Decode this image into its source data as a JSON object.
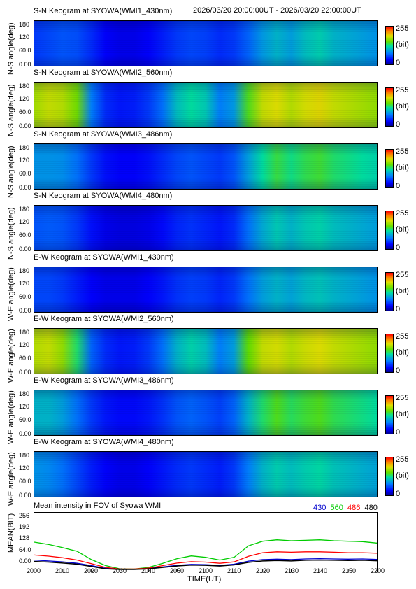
{
  "header": {
    "time_range": "2026/03/20 20:00:00UT - 2026/03/20 22:00:00UT"
  },
  "colorbar": {
    "max": "255",
    "unit": "(bit)",
    "min": "0"
  },
  "colors": {
    "430": "#0000cc",
    "560": "#00cc00",
    "486": "#ff0000",
    "480": "#000000"
  },
  "chart_data": [
    {
      "type": "heatmap",
      "title": "S-N Keogram at SYOWA(WMI1_430nm)",
      "ylabel": "N-S angle(deg)",
      "yticks": [
        "180",
        "120",
        "60.0",
        "0.00"
      ],
      "ylim": [
        0,
        180
      ],
      "xlim": [
        "2000",
        "2200"
      ],
      "colorbar_range": [
        0,
        255
      ],
      "profile": [
        [
          0,
          0.2
        ],
        [
          5,
          0.22
        ],
        [
          10,
          0.24
        ],
        [
          15,
          0.23
        ],
        [
          20,
          0.18
        ],
        [
          25,
          0.12
        ],
        [
          30,
          0.1
        ],
        [
          35,
          0.1
        ],
        [
          40,
          0.12
        ],
        [
          45,
          0.16
        ],
        [
          50,
          0.2
        ],
        [
          55,
          0.22
        ],
        [
          60,
          0.21
        ],
        [
          65,
          0.18
        ],
        [
          70,
          0.2
        ],
        [
          75,
          0.26
        ],
        [
          80,
          0.35
        ],
        [
          85,
          0.4
        ],
        [
          90,
          0.36
        ],
        [
          95,
          0.42
        ],
        [
          100,
          0.45
        ],
        [
          105,
          0.4
        ],
        [
          110,
          0.38
        ],
        [
          115,
          0.36
        ],
        [
          120,
          0.34
        ]
      ]
    },
    {
      "type": "heatmap",
      "title": "S-N Keogram at SYOWA(WMI2_560nm)",
      "ylabel": "N-S angle(deg)",
      "yticks": [
        "180",
        "120",
        "60.0",
        "0.00"
      ],
      "ylim": [
        0,
        180
      ],
      "xlim": [
        "2000",
        "2200"
      ],
      "colorbar_range": [
        0,
        255
      ],
      "profile": [
        [
          0,
          0.68
        ],
        [
          5,
          0.72
        ],
        [
          10,
          0.7
        ],
        [
          15,
          0.62
        ],
        [
          20,
          0.3
        ],
        [
          25,
          0.18
        ],
        [
          30,
          0.15
        ],
        [
          35,
          0.16
        ],
        [
          40,
          0.2
        ],
        [
          45,
          0.28
        ],
        [
          50,
          0.42
        ],
        [
          55,
          0.48
        ],
        [
          60,
          0.44
        ],
        [
          65,
          0.3
        ],
        [
          70,
          0.35
        ],
        [
          75,
          0.58
        ],
        [
          80,
          0.72
        ],
        [
          85,
          0.75
        ],
        [
          90,
          0.7
        ],
        [
          95,
          0.74
        ],
        [
          100,
          0.76
        ],
        [
          105,
          0.72
        ],
        [
          110,
          0.7
        ],
        [
          115,
          0.68
        ],
        [
          120,
          0.66
        ]
      ]
    },
    {
      "type": "heatmap",
      "title": "S-N Keogram at SYOWA(WMI3_486nm)",
      "ylabel": "N-S angle(deg)",
      "yticks": [
        "180",
        "120",
        "60.0",
        "0.00"
      ],
      "ylim": [
        0,
        180
      ],
      "xlim": [
        "2000",
        "2200"
      ],
      "colorbar_range": [
        0,
        255
      ],
      "profile": [
        [
          0,
          0.34
        ],
        [
          5,
          0.34
        ],
        [
          10,
          0.33
        ],
        [
          15,
          0.28
        ],
        [
          20,
          0.2
        ],
        [
          25,
          0.14
        ],
        [
          30,
          0.12
        ],
        [
          35,
          0.12
        ],
        [
          40,
          0.14
        ],
        [
          45,
          0.18
        ],
        [
          50,
          0.22
        ],
        [
          55,
          0.24
        ],
        [
          60,
          0.22
        ],
        [
          65,
          0.2
        ],
        [
          70,
          0.24
        ],
        [
          75,
          0.36
        ],
        [
          80,
          0.48
        ],
        [
          85,
          0.55
        ],
        [
          90,
          0.5
        ],
        [
          95,
          0.54
        ],
        [
          100,
          0.56
        ],
        [
          105,
          0.52
        ],
        [
          110,
          0.5
        ],
        [
          115,
          0.48
        ],
        [
          120,
          0.46
        ]
      ]
    },
    {
      "type": "heatmap",
      "title": "S-N Keogram at SYOWA(WMI4_480nm)",
      "ylabel": "N-S angle(deg)",
      "yticks": [
        "180",
        "120",
        "60.0",
        "0.00"
      ],
      "ylim": [
        0,
        180
      ],
      "xlim": [
        "2000",
        "2200"
      ],
      "colorbar_range": [
        0,
        255
      ],
      "profile": [
        [
          0,
          0.24
        ],
        [
          5,
          0.25
        ],
        [
          10,
          0.24
        ],
        [
          15,
          0.2
        ],
        [
          20,
          0.14
        ],
        [
          25,
          0.1
        ],
        [
          30,
          0.09
        ],
        [
          35,
          0.09
        ],
        [
          40,
          0.1
        ],
        [
          45,
          0.13
        ],
        [
          50,
          0.17
        ],
        [
          55,
          0.19
        ],
        [
          60,
          0.17
        ],
        [
          65,
          0.15
        ],
        [
          70,
          0.18
        ],
        [
          75,
          0.28
        ],
        [
          80,
          0.38
        ],
        [
          85,
          0.44
        ],
        [
          90,
          0.4
        ],
        [
          95,
          0.44
        ],
        [
          100,
          0.46
        ],
        [
          105,
          0.42
        ],
        [
          110,
          0.4
        ],
        [
          115,
          0.38
        ],
        [
          120,
          0.36
        ]
      ]
    },
    {
      "type": "heatmap",
      "title": "E-W Keogram at SYOWA(WMI1_430nm)",
      "ylabel": "W-E angle(deg)",
      "yticks": [
        "180",
        "120",
        "60.0",
        "0.00"
      ],
      "ylim": [
        0,
        180
      ],
      "xlim": [
        "2000",
        "2200"
      ],
      "colorbar_range": [
        0,
        255
      ],
      "profile": [
        [
          0,
          0.22
        ],
        [
          5,
          0.22
        ],
        [
          10,
          0.2
        ],
        [
          15,
          0.16
        ],
        [
          20,
          0.12
        ],
        [
          25,
          0.1
        ],
        [
          30,
          0.1
        ],
        [
          35,
          0.1
        ],
        [
          40,
          0.12
        ],
        [
          45,
          0.15
        ],
        [
          50,
          0.19
        ],
        [
          55,
          0.21
        ],
        [
          60,
          0.2
        ],
        [
          65,
          0.17
        ],
        [
          70,
          0.2
        ],
        [
          75,
          0.28
        ],
        [
          80,
          0.36
        ],
        [
          85,
          0.4
        ],
        [
          90,
          0.37
        ],
        [
          95,
          0.41
        ],
        [
          100,
          0.43
        ],
        [
          105,
          0.4
        ],
        [
          110,
          0.38
        ],
        [
          115,
          0.36
        ],
        [
          120,
          0.34
        ]
      ]
    },
    {
      "type": "heatmap",
      "title": "E-W Keogram at SYOWA(WMI2_560nm)",
      "ylabel": "W-E angle(deg)",
      "yticks": [
        "180",
        "120",
        "60.0",
        "0.00"
      ],
      "ylim": [
        0,
        180
      ],
      "xlim": [
        "2000",
        "2200"
      ],
      "colorbar_range": [
        0,
        255
      ],
      "profile": [
        [
          0,
          0.7
        ],
        [
          5,
          0.72
        ],
        [
          10,
          0.66
        ],
        [
          15,
          0.52
        ],
        [
          20,
          0.26
        ],
        [
          25,
          0.18
        ],
        [
          30,
          0.15
        ],
        [
          35,
          0.16
        ],
        [
          40,
          0.2
        ],
        [
          45,
          0.28
        ],
        [
          50,
          0.4
        ],
        [
          55,
          0.46
        ],
        [
          60,
          0.42
        ],
        [
          65,
          0.3
        ],
        [
          70,
          0.36
        ],
        [
          75,
          0.6
        ],
        [
          80,
          0.72
        ],
        [
          85,
          0.74
        ],
        [
          90,
          0.7
        ],
        [
          95,
          0.73
        ],
        [
          100,
          0.75
        ],
        [
          105,
          0.72
        ],
        [
          110,
          0.7
        ],
        [
          115,
          0.68
        ],
        [
          120,
          0.66
        ]
      ]
    },
    {
      "type": "heatmap",
      "title": "E-W Keogram at SYOWA(WMI3_486nm)",
      "ylabel": "W-E angle(deg)",
      "yticks": [
        "180",
        "120",
        "60.0",
        "0.00"
      ],
      "ylim": [
        0,
        180
      ],
      "xlim": [
        "2000",
        "2200"
      ],
      "colorbar_range": [
        0,
        255
      ],
      "profile": [
        [
          0,
          0.4
        ],
        [
          5,
          0.4
        ],
        [
          10,
          0.36
        ],
        [
          15,
          0.28
        ],
        [
          20,
          0.2
        ],
        [
          25,
          0.15
        ],
        [
          30,
          0.13
        ],
        [
          35,
          0.13
        ],
        [
          40,
          0.15
        ],
        [
          45,
          0.19
        ],
        [
          50,
          0.24
        ],
        [
          55,
          0.26
        ],
        [
          60,
          0.24
        ],
        [
          65,
          0.21
        ],
        [
          70,
          0.26
        ],
        [
          75,
          0.4
        ],
        [
          80,
          0.52
        ],
        [
          85,
          0.58
        ],
        [
          90,
          0.53
        ],
        [
          95,
          0.56
        ],
        [
          100,
          0.58
        ],
        [
          105,
          0.54
        ],
        [
          110,
          0.52
        ],
        [
          115,
          0.5
        ],
        [
          120,
          0.48
        ]
      ]
    },
    {
      "type": "heatmap",
      "title": "E-W Keogram at SYOWA(WMI4_480nm)",
      "ylabel": "W-E angle(deg)",
      "yticks": [
        "180",
        "120",
        "60.0",
        "0.00"
      ],
      "ylim": [
        0,
        180
      ],
      "xlim": [
        "2000",
        "2200"
      ],
      "colorbar_range": [
        0,
        255
      ],
      "profile": [
        [
          0,
          0.34
        ],
        [
          5,
          0.32
        ],
        [
          10,
          0.28
        ],
        [
          15,
          0.22
        ],
        [
          20,
          0.16
        ],
        [
          25,
          0.12
        ],
        [
          30,
          0.1
        ],
        [
          35,
          0.1
        ],
        [
          40,
          0.12
        ],
        [
          45,
          0.15
        ],
        [
          50,
          0.18
        ],
        [
          55,
          0.2
        ],
        [
          60,
          0.18
        ],
        [
          65,
          0.16
        ],
        [
          70,
          0.2
        ],
        [
          75,
          0.3
        ],
        [
          80,
          0.4
        ],
        [
          85,
          0.45
        ],
        [
          90,
          0.42
        ],
        [
          95,
          0.45
        ],
        [
          100,
          0.47
        ],
        [
          105,
          0.43
        ],
        [
          110,
          0.41
        ],
        [
          115,
          0.39
        ],
        [
          120,
          0.37
        ]
      ]
    },
    {
      "type": "line",
      "title": "Mean intensity in FOV of Syowa WMI",
      "xlabel": "TIME(UT)",
      "ylabel": "MEAN(BIT)",
      "xticks": [
        "2000",
        "2010",
        "2020",
        "2030",
        "2040",
        "2050",
        "2100",
        "2110",
        "2120",
        "2130",
        "2140",
        "2150",
        "2200"
      ],
      "yticks": [
        "256",
        "192",
        "128",
        "64.0",
        "0.00"
      ],
      "ylim": [
        0,
        256
      ],
      "grid": false,
      "legend": "top-right",
      "x": [
        0,
        5,
        10,
        15,
        20,
        25,
        30,
        35,
        40,
        45,
        50,
        55,
        60,
        65,
        70,
        75,
        80,
        85,
        90,
        95,
        100,
        105,
        110,
        115,
        120
      ],
      "series": [
        {
          "name": "430",
          "color": "#0000cc",
          "values": [
            50,
            46,
            42,
            36,
            26,
            14,
            10,
            10,
            13,
            20,
            27,
            31,
            30,
            27,
            32,
            45,
            52,
            54,
            52,
            55,
            56,
            55,
            54,
            55,
            53
          ]
        },
        {
          "name": "560",
          "color": "#00cc00",
          "values": [
            128,
            118,
            104,
            88,
            52,
            26,
            12,
            11,
            18,
            36,
            56,
            68,
            62,
            50,
            62,
            112,
            132,
            138,
            134,
            136,
            138,
            134,
            132,
            130,
            124
          ]
        },
        {
          "name": "486",
          "color": "#ff0000",
          "values": [
            72,
            67,
            60,
            50,
            34,
            18,
            11,
            11,
            15,
            26,
            37,
            43,
            41,
            36,
            42,
            66,
            82,
            86,
            84,
            86,
            86,
            84,
            82,
            82,
            80
          ]
        },
        {
          "name": "480",
          "color": "#000000",
          "values": [
            44,
            41,
            37,
            32,
            22,
            12,
            9,
            9,
            12,
            18,
            24,
            28,
            27,
            24,
            29,
            40,
            46,
            48,
            46,
            49,
            50,
            49,
            48,
            49,
            47
          ]
        }
      ]
    }
  ]
}
